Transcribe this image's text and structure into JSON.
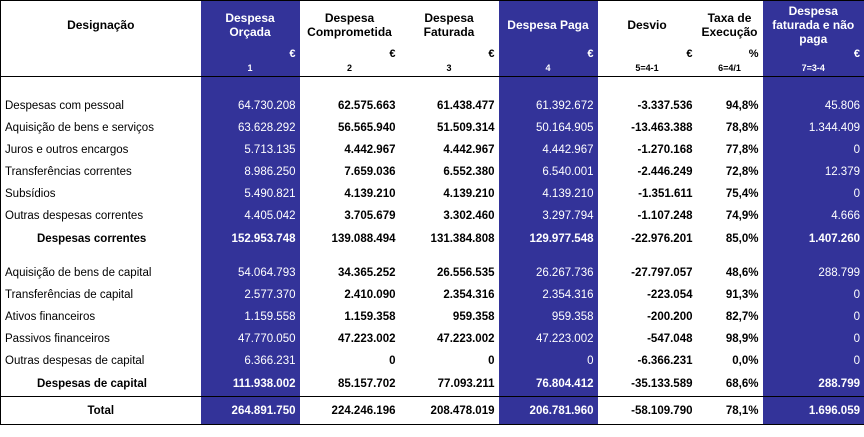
{
  "header": {
    "designacao": "Designação",
    "columns": [
      {
        "label": "Despesa Orçada",
        "unit": "€",
        "index": "1"
      },
      {
        "label": "Despesa Comprometida",
        "unit": "€",
        "index": "2"
      },
      {
        "label": "Despesa Faturada",
        "unit": "€",
        "index": "3"
      },
      {
        "label": "Despesa Paga",
        "unit": "€",
        "index": "4"
      },
      {
        "label": "Desvio",
        "unit": "€",
        "index": "5=4-1"
      },
      {
        "label": "Taxa de Execução",
        "unit": "%",
        "index": "6=4/1"
      },
      {
        "label": "Despesa faturada e não paga",
        "unit": "€",
        "index": "7=3-4"
      }
    ]
  },
  "current": {
    "rows": [
      {
        "label": "Despesas com pessoal",
        "v": [
          "64.730.208",
          "62.575.663",
          "61.438.477",
          "61.392.672",
          "-3.337.536",
          "94,8%",
          "45.806"
        ]
      },
      {
        "label": "Aquisição de bens e serviços",
        "v": [
          "63.628.292",
          "56.565.940",
          "51.509.314",
          "50.164.905",
          "-13.463.388",
          "78,8%",
          "1.344.409"
        ]
      },
      {
        "label": "Juros e outros encargos",
        "v": [
          "5.713.135",
          "4.442.967",
          "4.442.967",
          "4.442.967",
          "-1.270.168",
          "77,8%",
          "0"
        ]
      },
      {
        "label": "Transferências correntes",
        "v": [
          "8.986.250",
          "7.659.036",
          "6.552.380",
          "6.540.001",
          "-2.446.249",
          "72,8%",
          "12.379"
        ]
      },
      {
        "label": "Subsídios",
        "v": [
          "5.490.821",
          "4.139.210",
          "4.139.210",
          "4.139.210",
          "-1.351.611",
          "75,4%",
          "0"
        ]
      },
      {
        "label": "Outras despesas correntes",
        "v": [
          "4.405.042",
          "3.705.679",
          "3.302.460",
          "3.297.794",
          "-1.107.248",
          "74,9%",
          "4.666"
        ]
      }
    ],
    "subtotal": {
      "label": "Despesas correntes",
      "v": [
        "152.953.748",
        "139.088.494",
        "131.384.808",
        "129.977.548",
        "-22.976.201",
        "85,0%",
        "1.407.260"
      ]
    }
  },
  "capital": {
    "rows": [
      {
        "label": "Aquisição de bens de capital",
        "v": [
          "54.064.793",
          "34.365.252",
          "26.556.535",
          "26.267.736",
          "-27.797.057",
          "48,6%",
          "288.799"
        ]
      },
      {
        "label": "Transferências de capital",
        "v": [
          "2.577.370",
          "2.410.090",
          "2.354.316",
          "2.354.316",
          "-223.054",
          "91,3%",
          "0"
        ]
      },
      {
        "label": "Ativos financeiros",
        "v": [
          "1.159.558",
          "1.159.358",
          "959.358",
          "959.358",
          "-200.200",
          "82,7%",
          "0"
        ]
      },
      {
        "label": "Passivos financeiros",
        "v": [
          "47.770.050",
          "47.223.002",
          "47.223.002",
          "47.223.002",
          "-547.048",
          "98,9%",
          "0"
        ]
      },
      {
        "label": "Outras despesas de capital",
        "v": [
          "6.366.231",
          "0",
          "0",
          "0",
          "-6.366.231",
          "0,0%",
          "0"
        ]
      }
    ],
    "subtotal": {
      "label": "Despesas de capital",
      "v": [
        "111.938.002",
        "85.157.702",
        "77.093.211",
        "76.804.412",
        "-35.133.589",
        "68,6%",
        "288.799"
      ]
    }
  },
  "total": {
    "label": "Total",
    "v": [
      "264.891.750",
      "224.246.196",
      "208.478.019",
      "206.781.960",
      "-58.109.790",
      "78,1%",
      "1.696.059"
    ]
  },
  "colors": {
    "header_blue": "#333399",
    "text_white": "#ffffff"
  }
}
